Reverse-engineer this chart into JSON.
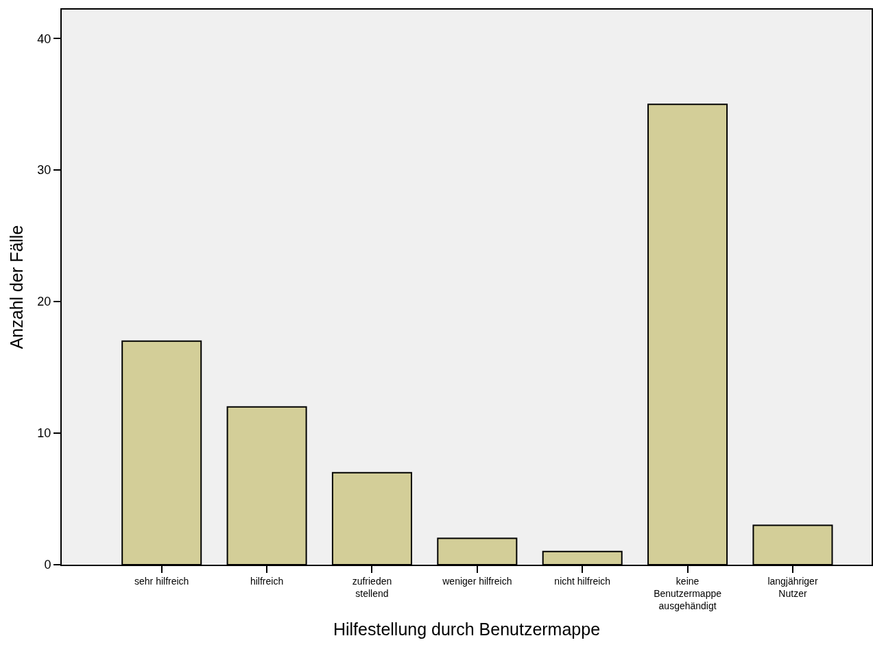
{
  "chart_data": {
    "type": "bar",
    "xlabel": "Hilfestellung durch Benutzermappe",
    "ylabel": "Anzahl der Fälle",
    "categories": [
      "sehr hilfreich",
      "hilfreich",
      "zufrieden stellend",
      "weniger hilfreich",
      "nicht hilfreich",
      "keine Benutzermappe ausgehändigt",
      "langjähriger Nutzer"
    ],
    "values": [
      17,
      12,
      7,
      2,
      1,
      35,
      3
    ],
    "color": "#d3ce98",
    "ylim": [
      0,
      42.2
    ],
    "yticks": [
      0,
      10,
      20,
      30,
      40
    ],
    "grid": false
  }
}
